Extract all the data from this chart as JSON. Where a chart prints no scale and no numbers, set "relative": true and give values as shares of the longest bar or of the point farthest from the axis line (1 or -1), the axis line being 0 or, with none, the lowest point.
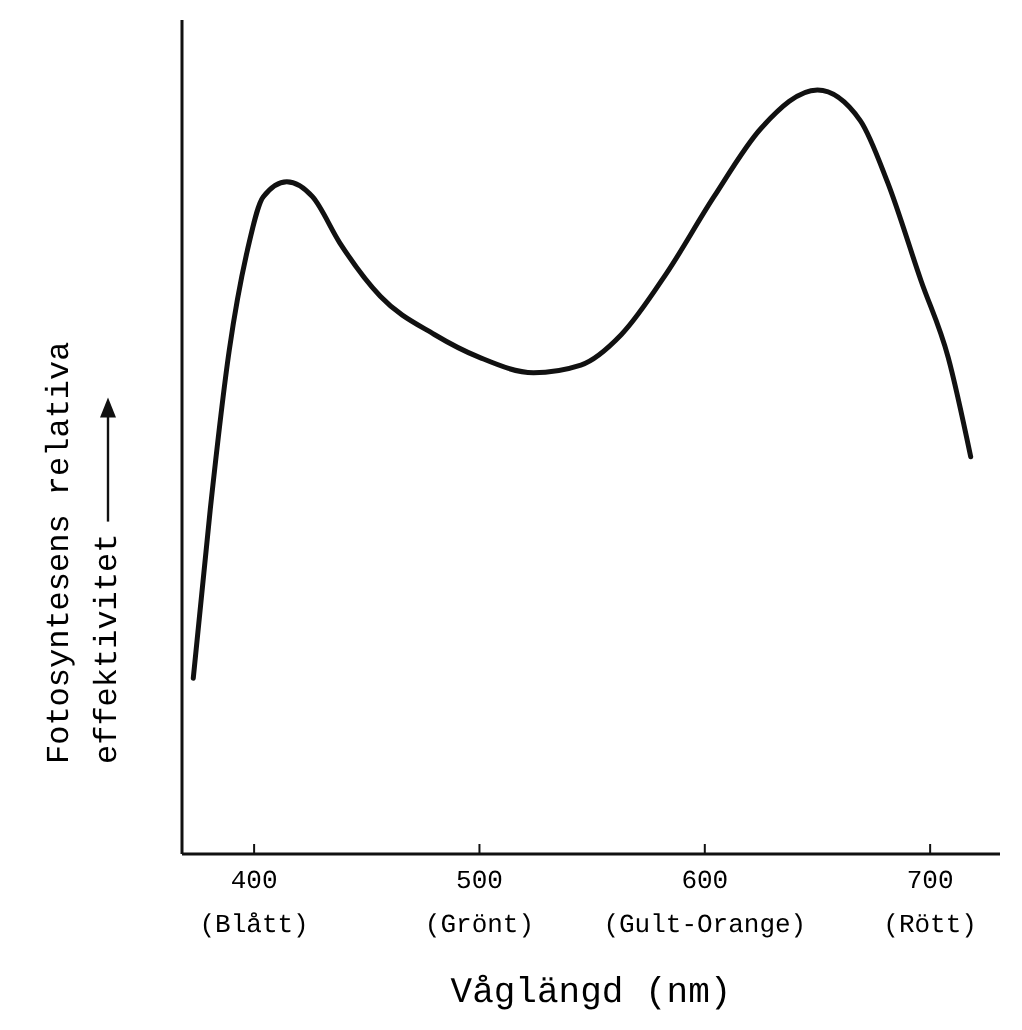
{
  "chart_data": {
    "type": "line",
    "relative": true,
    "xlabel": "Våglängd (nm)",
    "ylabel": "Fotosyntesens relativa effektivitet",
    "xlim": [
      368,
      731
    ],
    "xticks": [
      {
        "value": 400,
        "label": "400\n(Blått)"
      },
      {
        "value": 500,
        "label": "500\n(Grönt)"
      },
      {
        "value": 600,
        "label": "600\n(Gult-Orange)"
      },
      {
        "value": 700,
        "label": "700\n(Rött)"
      }
    ],
    "grid": false,
    "marker": "none",
    "line_style": "solid",
    "series": [
      {
        "color": "#111111",
        "x": [
          373,
          380.5,
          389,
          397,
          404,
          414.5,
          426,
          438,
          456,
          480,
          500,
          524,
          545,
          563,
          583,
          604,
          625,
          650,
          669,
          681,
          696,
          708,
          718
        ],
        "values": [
          0.23,
          0.45,
          0.66,
          0.79,
          0.86,
          0.88,
          0.86,
          0.8,
          0.73,
          0.68,
          0.65,
          0.63,
          0.64,
          0.68,
          0.76,
          0.86,
          0.95,
          1,
          0.96,
          0.88,
          0.75,
          0.65,
          0.52
        ]
      }
    ]
  }
}
